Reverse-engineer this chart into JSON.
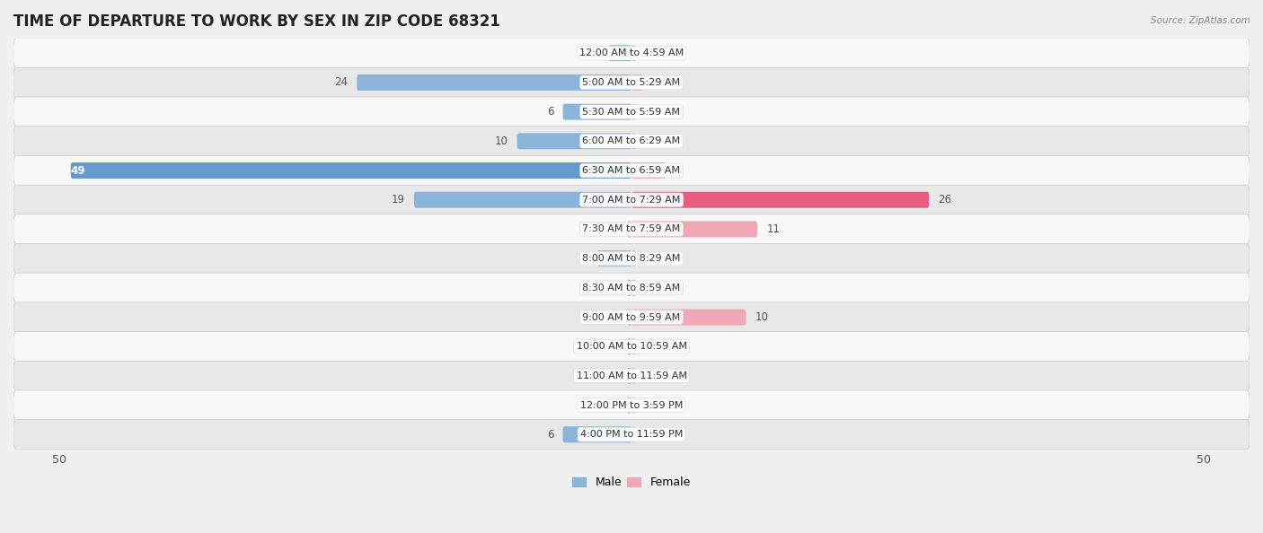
{
  "title": "TIME OF DEPARTURE TO WORK BY SEX IN ZIP CODE 68321",
  "source": "Source: ZipAtlas.com",
  "categories": [
    "12:00 AM to 4:59 AM",
    "5:00 AM to 5:29 AM",
    "5:30 AM to 5:59 AM",
    "6:00 AM to 6:29 AM",
    "6:30 AM to 6:59 AM",
    "7:00 AM to 7:29 AM",
    "7:30 AM to 7:59 AM",
    "8:00 AM to 8:29 AM",
    "8:30 AM to 8:59 AM",
    "9:00 AM to 9:59 AM",
    "10:00 AM to 10:59 AM",
    "11:00 AM to 11:59 AM",
    "12:00 PM to 3:59 PM",
    "4:00 PM to 11:59 PM"
  ],
  "male_values": [
    2,
    24,
    6,
    10,
    49,
    19,
    0,
    3,
    0,
    0,
    0,
    0,
    0,
    6
  ],
  "female_values": [
    0,
    1,
    0,
    0,
    3,
    26,
    11,
    0,
    0,
    10,
    0,
    0,
    0,
    0
  ],
  "male_color": "#8ab4d8",
  "female_color": "#f0a8b8",
  "male_highlight_color": "#6699cc",
  "female_highlight_color": "#e85c80",
  "bg_color": "#f0f0f0",
  "row_bg_even": "#f8f8f8",
  "row_bg_odd": "#e8e8e8",
  "axis_limit": 50,
  "title_fontsize": 12,
  "label_fontsize": 8,
  "tick_fontsize": 9,
  "legend_fontsize": 9,
  "value_fontsize": 8.5
}
